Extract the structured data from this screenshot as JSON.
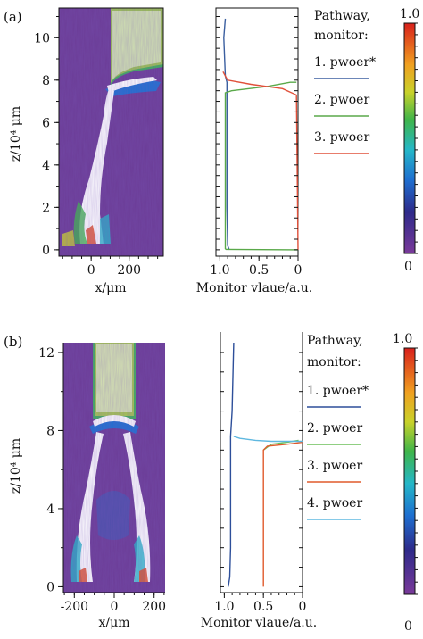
{
  "panels": [
    {
      "label": "(a)",
      "map": {
        "ylabel": "z/10⁴ μm",
        "xlabel": "x/μm",
        "xlim": [
          -170,
          380
        ],
        "ylim": [
          -0.3,
          11.4
        ],
        "xticks": [
          0,
          200
        ],
        "yticks": [
          0,
          2,
          4,
          6,
          8,
          10
        ]
      },
      "monitor": {
        "xlabel": "Monitor vlaue/a.u.",
        "xlim": [
          1.05,
          0
        ],
        "xticks": [
          "1.0",
          "0.5",
          "0"
        ],
        "legend_title": "Pathway, monitor:",
        "legend": [
          {
            "label": "1. pwoer*",
            "color": "#3b5fa0"
          },
          {
            "label": "2. pwoer",
            "color": "#5aa94a"
          },
          {
            "label": "3. pwoer",
            "color": "#e0503a"
          }
        ]
      },
      "colorbar": {
        "max": "1.0",
        "min": "0"
      }
    },
    {
      "label": "(b)",
      "map": {
        "ylabel": "z/10⁴ μm",
        "xlabel": "x/μm",
        "xlim": [
          -255,
          255
        ],
        "ylim": [
          -0.3,
          12.5
        ],
        "xticks": [
          -200,
          0,
          200
        ],
        "yticks": [
          0,
          4,
          8,
          12
        ]
      },
      "monitor": {
        "xlabel": "Monitor vlaue/a.u.",
        "xlim": [
          1.05,
          0
        ],
        "xticks": [
          "1.0",
          "0.5",
          "0"
        ],
        "legend_title": "Pathway, monitor:",
        "legend": [
          {
            "label": "1. pwoer*",
            "color": "#2d4f9a"
          },
          {
            "label": "2. pwoer",
            "color": "#6bbf59"
          },
          {
            "label": "3. pwoer",
            "color": "#e05a2b"
          },
          {
            "label": "4. pwoer",
            "color": "#5fb8e0"
          }
        ]
      },
      "colorbar": {
        "max": "1.0",
        "min": "0"
      }
    }
  ],
  "chart_data": [
    {
      "type": "line",
      "panel": "(a)",
      "xlabel": "Monitor vlaue/a.u.",
      "ylabel": "z/10⁴ μm",
      "xlim": [
        1.05,
        0
      ],
      "ylim": [
        -0.3,
        11.4
      ],
      "series": [
        {
          "name": "1. pwoer*",
          "points": [
            [
              0.88,
              0.0
            ],
            [
              0.9,
              0.2
            ],
            [
              0.91,
              2.0
            ],
            [
              0.91,
              7.9
            ],
            [
              0.93,
              8.2
            ],
            [
              0.95,
              10.0
            ],
            [
              0.93,
              10.9
            ]
          ]
        },
        {
          "name": "2. pwoer",
          "points": [
            [
              0.0,
              0.0
            ],
            [
              0.92,
              0.02
            ],
            [
              0.93,
              0.05
            ],
            [
              0.93,
              7.4
            ],
            [
              0.85,
              7.5
            ],
            [
              0.4,
              7.7
            ],
            [
              0.1,
              7.9
            ],
            [
              0.02,
              7.9
            ]
          ]
        },
        {
          "name": "3. pwoer",
          "points": [
            [
              0.96,
              8.4
            ],
            [
              0.9,
              8.0
            ],
            [
              0.6,
              7.8
            ],
            [
              0.2,
              7.6
            ],
            [
              0.02,
              7.3
            ],
            [
              0.0,
              0.0
            ]
          ]
        }
      ]
    },
    {
      "type": "line",
      "panel": "(b)",
      "xlabel": "Monitor vlaue/a.u.",
      "ylabel": "z/10⁴ μm",
      "xlim": [
        1.05,
        0
      ],
      "ylim": [
        -0.3,
        12.5
      ],
      "series": [
        {
          "name": "1. pwoer*",
          "points": [
            [
              0.95,
              0.0
            ],
            [
              0.93,
              0.5
            ],
            [
              0.92,
              2.0
            ],
            [
              0.92,
              7.7
            ],
            [
              0.9,
              9.0
            ],
            [
              0.88,
              12.5
            ]
          ]
        },
        {
          "name": "2. pwoer",
          "points": [
            [
              0.5,
              7.0
            ],
            [
              0.4,
              7.3
            ],
            [
              0.2,
              7.4
            ],
            [
              0.05,
              7.5
            ]
          ]
        },
        {
          "name": "3. pwoer",
          "points": [
            [
              0.5,
              0.0
            ],
            [
              0.5,
              7.0
            ],
            [
              0.45,
              7.2
            ],
            [
              0.2,
              7.3
            ],
            [
              0.0,
              7.4
            ]
          ]
        },
        {
          "name": "4. pwoer",
          "points": [
            [
              0.88,
              7.7
            ],
            [
              0.8,
              7.6
            ],
            [
              0.6,
              7.5
            ],
            [
              0.4,
              7.45
            ],
            [
              0.1,
              7.45
            ],
            [
              0.0,
              7.45
            ]
          ]
        }
      ]
    }
  ]
}
